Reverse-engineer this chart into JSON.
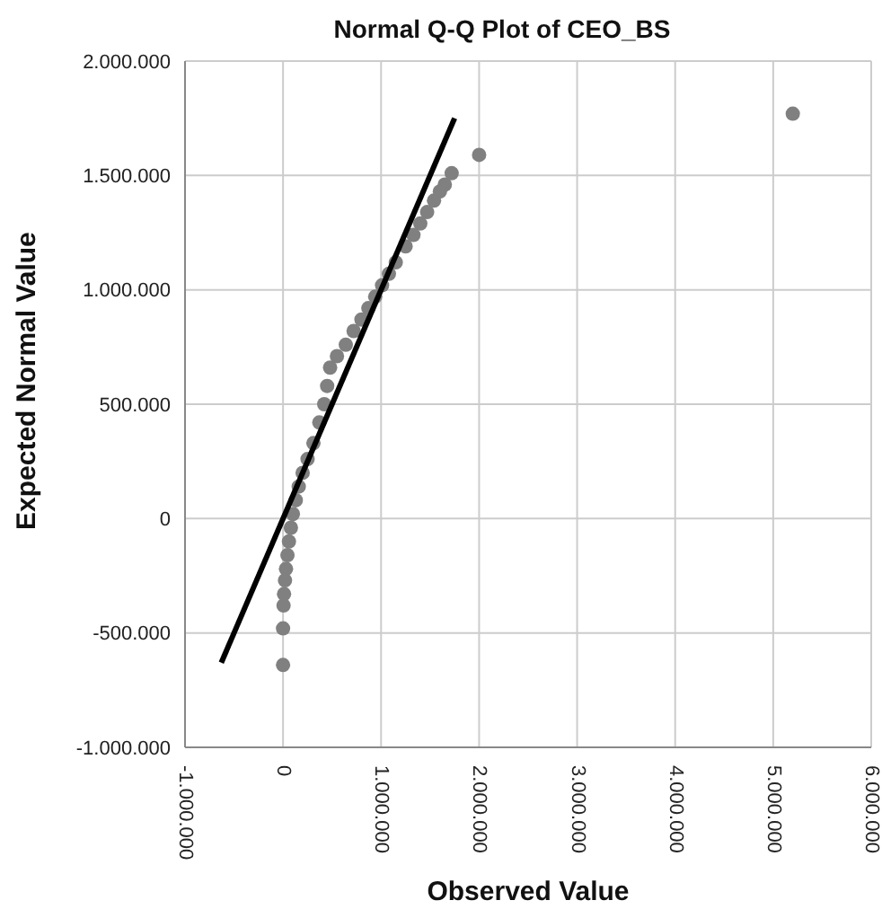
{
  "chart_data": {
    "type": "scatter",
    "title": "Normal Q-Q Plot of CEO_BS",
    "xlabel": "Observed Value",
    "ylabel": "Expected Normal Value",
    "series": [
      {
        "type": "scatter",
        "color": "#808080",
        "x": [
          0,
          0,
          5000,
          10000,
          20000,
          30000,
          45000,
          60000,
          80000,
          100000,
          130000,
          160000,
          200000,
          250000,
          310000,
          370000,
          420000,
          450000,
          480000,
          550000,
          640000,
          720000,
          800000,
          870000,
          940000,
          1010000,
          1080000,
          1150000,
          1250000,
          1330000,
          1400000,
          1470000,
          1540000,
          1600000,
          1650000,
          1720000,
          2000000,
          5200000
        ],
        "values": [
          -640000,
          -480000,
          -380000,
          -330000,
          -270000,
          -220000,
          -160000,
          -100000,
          -40000,
          20000,
          80000,
          140000,
          200000,
          260000,
          330000,
          420000,
          500000,
          580000,
          660000,
          710000,
          760000,
          820000,
          870000,
          920000,
          970000,
          1020000,
          1070000,
          1120000,
          1190000,
          1240000,
          1290000,
          1340000,
          1390000,
          1430000,
          1460000,
          1510000,
          1590000,
          1770000
        ]
      },
      {
        "type": "line",
        "color": "#000000",
        "marker": "none",
        "x": [
          -630000,
          1750000
        ],
        "values": [
          -630000,
          1750000
        ]
      }
    ],
    "xlim": [
      -1000000,
      6000000
    ],
    "xticks": [
      {
        "value": -1000000,
        "label": "-1.000.000"
      },
      0,
      {
        "value": 1000000,
        "label": "1.000.000"
      },
      {
        "value": 2000000,
        "label": "2.000.000"
      },
      {
        "value": 3000000,
        "label": "3.000.000"
      },
      {
        "value": 4000000,
        "label": "4.000.000"
      },
      {
        "value": 5000000,
        "label": "5.000.000"
      },
      {
        "value": 6000000,
        "label": "6.000.000"
      }
    ],
    "ylim": [
      -1000000,
      2000000
    ],
    "yticks": [
      {
        "value": -1000000,
        "label": "-1.000.000"
      },
      {
        "value": -500000,
        "label": "-500.000"
      },
      0,
      {
        "value": 500000,
        "label": "500.000"
      },
      {
        "value": 1000000,
        "label": "1.000.000"
      },
      {
        "value": 1500000,
        "label": "1.500.000"
      },
      {
        "value": 2000000,
        "label": "2.000.000"
      }
    ],
    "grid": true,
    "marker": "circle"
  }
}
